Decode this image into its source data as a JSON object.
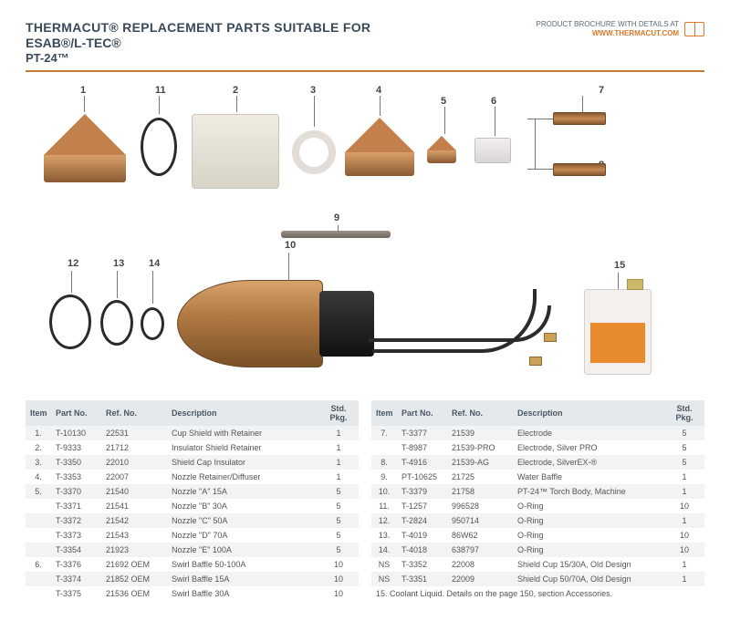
{
  "header": {
    "title_line1": "THERMACUT® REPLACEMENT PARTS SUITABLE FOR",
    "title_line2": "ESAB®/L-TEC®",
    "title_line3": "PT-24™",
    "brochure_label": "PRODUCT BROCHURE WITH DETAILS AT",
    "brochure_link": "WWW.THERMACUT.COM"
  },
  "diagram": {
    "callouts": [
      "1",
      "2",
      "3",
      "4",
      "5",
      "6",
      "7",
      "8",
      "9",
      "10",
      "11",
      "12",
      "13",
      "14",
      "15"
    ],
    "colors": {
      "copper_light": "#d9a06a",
      "copper_mid": "#c4804a",
      "copper_dark": "#8a5a32",
      "insulator": "#eae6dd",
      "oring": "#2b2b2b",
      "ceramic": "#e9e4e4",
      "accent": "#c77a3a",
      "canister_body": "#f3f0ee",
      "canister_label": "#e88a2e"
    }
  },
  "table": {
    "headers": {
      "item": "Item",
      "part_no": "Part No.",
      "ref_no": "Ref. No.",
      "description": "Description",
      "std_pkg": "Std. Pkg."
    },
    "left_rows": [
      {
        "item": "1.",
        "part": "T-10130",
        "ref": "22531",
        "desc": "Cup Shield with Retainer",
        "pkg": "1"
      },
      {
        "item": "2.",
        "part": "T-9333",
        "ref": "21712",
        "desc": "Insulator Shield Retainer",
        "pkg": "1"
      },
      {
        "item": "3.",
        "part": "T-3350",
        "ref": "22010",
        "desc": "Shield Cap Insulator",
        "pkg": "1"
      },
      {
        "item": "4.",
        "part": "T-3353",
        "ref": "22007",
        "desc": "Nozzle Retainer/Diffuser",
        "pkg": "1"
      },
      {
        "item": "5.",
        "part": "T-3370",
        "ref": "21540",
        "desc": "Nozzle \"A\" 15A",
        "pkg": "5"
      },
      {
        "item": "",
        "part": "T-3371",
        "ref": "21541",
        "desc": "Nozzle \"B\" 30A",
        "pkg": "5"
      },
      {
        "item": "",
        "part": "T-3372",
        "ref": "21542",
        "desc": "Nozzle \"C\" 50A",
        "pkg": "5"
      },
      {
        "item": "",
        "part": "T-3373",
        "ref": "21543",
        "desc": "Nozzle \"D\" 70A",
        "pkg": "5"
      },
      {
        "item": "",
        "part": "T-3354",
        "ref": "21923",
        "desc": "Nozzle \"E\" 100A",
        "pkg": "5"
      },
      {
        "item": "6.",
        "part": "T-3376",
        "ref": "21692 OEM",
        "desc": "Swirl Baffle 50-100A",
        "pkg": "10"
      },
      {
        "item": "",
        "part": "T-3374",
        "ref": "21852 OEM",
        "desc": "Swirl Baffle 15A",
        "pkg": "10"
      },
      {
        "item": "",
        "part": "T-3375",
        "ref": "21536 OEM",
        "desc": "Swirl Baffle 30A",
        "pkg": "10"
      }
    ],
    "right_rows": [
      {
        "item": "7.",
        "part": "T-3377",
        "ref": "21539",
        "desc": "Electrode",
        "pkg": "5"
      },
      {
        "item": "",
        "part": "T-8987",
        "ref": "21539-PRO",
        "desc": "Electrode, Silver PRO",
        "pkg": "5"
      },
      {
        "item": "8.",
        "part": "T-4916",
        "ref": "21539-AG",
        "desc": "Electrode, SilverEX-®",
        "pkg": "5"
      },
      {
        "item": "9.",
        "part": "PT-10625",
        "ref": "21725",
        "desc": "Water Baffle",
        "pkg": "1"
      },
      {
        "item": "10.",
        "part": "T-3379",
        "ref": "21758",
        "desc": "PT-24™ Torch Body, Machine",
        "pkg": "1"
      },
      {
        "item": "11.",
        "part": "T-1257",
        "ref": "996528",
        "desc": "O-Ring",
        "pkg": "10"
      },
      {
        "item": "12.",
        "part": "T-2824",
        "ref": "950714",
        "desc": "O-Ring",
        "pkg": "1"
      },
      {
        "item": "13.",
        "part": "T-4019",
        "ref": "86W62",
        "desc": "O-Ring",
        "pkg": "10"
      },
      {
        "item": "14.",
        "part": "T-4018",
        "ref": "638797",
        "desc": "O-Ring",
        "pkg": "10"
      },
      {
        "item": "NS",
        "part": "T-3352",
        "ref": "22008",
        "desc": "Shield Cup 15/30A, Old Design",
        "pkg": "1"
      },
      {
        "item": "NS",
        "part": "T-3351",
        "ref": "22009",
        "desc": "Shield Cup 50/70A, Old Design",
        "pkg": "1"
      }
    ],
    "footnote": "15.   Coolant Liquid. Details on the page 150, section Accessories."
  }
}
